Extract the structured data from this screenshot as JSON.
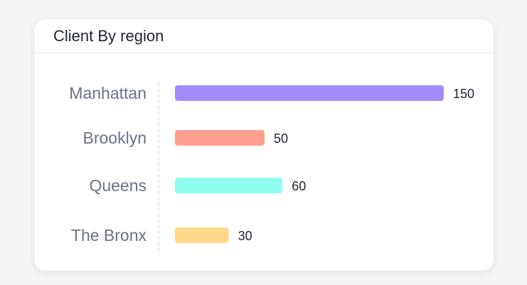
{
  "card": {
    "title": "Client By region"
  },
  "colors": {
    "axis_line": "#d9dbe2",
    "label_text": "#6b7285",
    "value_text": "#1f2430"
  },
  "chart_data": {
    "type": "bar",
    "orientation": "horizontal",
    "title": "Client By region",
    "categories": [
      "Manhattan",
      "Brooklyn",
      "Queens",
      "The Bronx"
    ],
    "values": [
      150,
      50,
      60,
      30
    ],
    "colors": [
      "#a28bfc",
      "#ffa08f",
      "#8ffcf1",
      "#ffd98b"
    ],
    "xlim": [
      0,
      160
    ],
    "grid": false,
    "legend": "none",
    "data_labels": true
  }
}
